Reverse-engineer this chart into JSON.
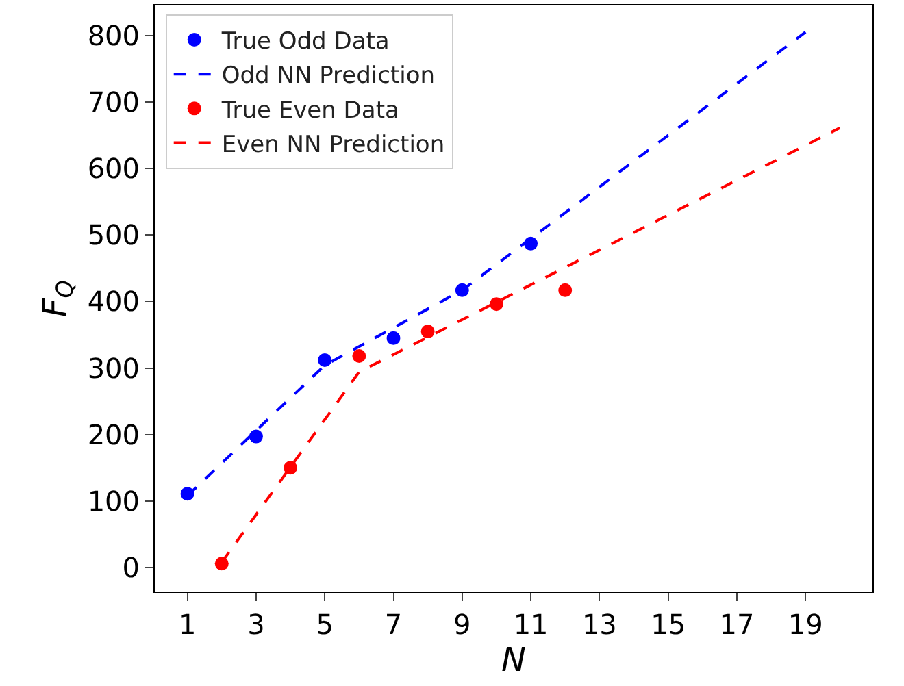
{
  "chart_data": {
    "type": "scatter",
    "xlabel": "N",
    "ylabel": "F$_{Q}$",
    "xlim": [
      0.05,
      20.95
    ],
    "ylim": [
      -36,
      845
    ],
    "xticks": [
      1,
      3,
      5,
      7,
      9,
      11,
      13,
      15,
      17,
      19
    ],
    "yticks": [
      0,
      100,
      200,
      300,
      400,
      500,
      600,
      700,
      800
    ],
    "legend": "top left",
    "series": [
      {
        "name": "True Odd Data",
        "marker": "circle",
        "color": "#0000ff",
        "x": [
          1,
          3,
          5,
          7,
          9,
          11
        ],
        "values": [
          111,
          197,
          312,
          345,
          417,
          487
        ]
      },
      {
        "name": "Odd NN Prediction",
        "type": "line",
        "line_style": "dashed",
        "color": "#0000ff",
        "x": [
          1,
          5,
          9,
          19
        ],
        "values": [
          108,
          304,
          417,
          805
        ]
      },
      {
        "name": "True Even Data",
        "marker": "circle",
        "color": "#ff0000",
        "x": [
          2,
          4,
          6,
          8,
          10,
          12
        ],
        "values": [
          6,
          150,
          318,
          355,
          396,
          417
        ]
      },
      {
        "name": "Even NN Prediction",
        "type": "line",
        "line_style": "dashed",
        "color": "#ff0000",
        "x": [
          2,
          6,
          20
        ],
        "values": [
          8,
          294,
          661
        ]
      }
    ]
  }
}
